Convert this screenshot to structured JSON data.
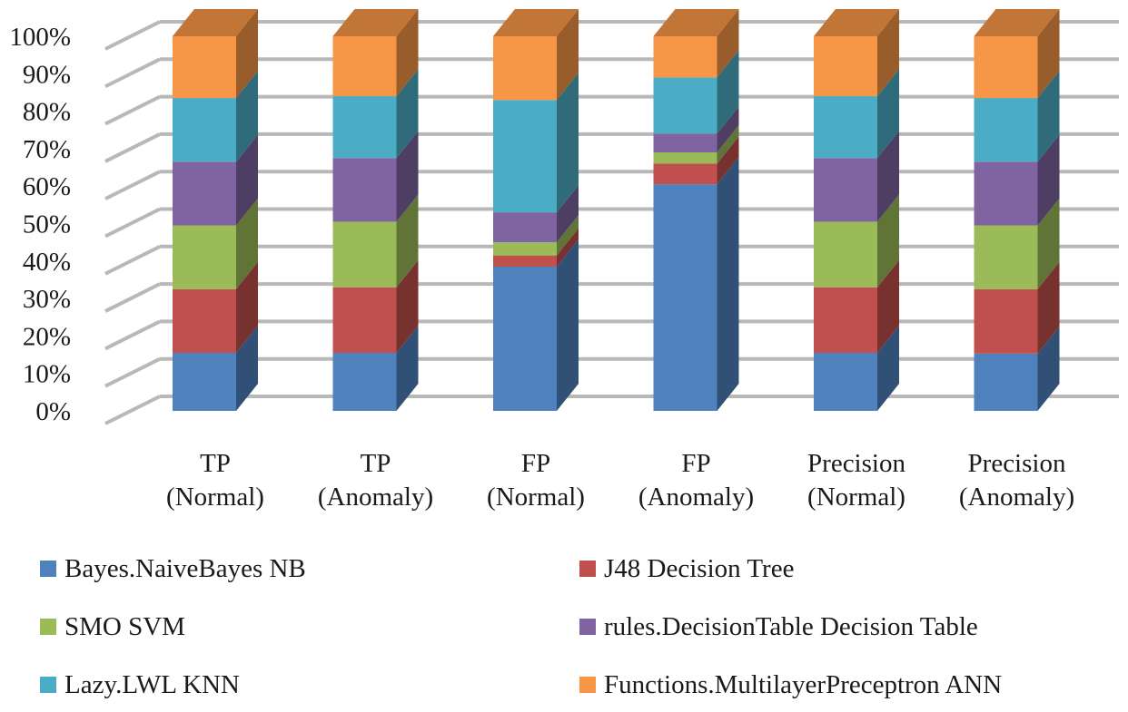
{
  "chart_data": {
    "type": "bar",
    "stacked": "percent",
    "three_d": true,
    "title": "",
    "xlabel": "",
    "ylabel": "",
    "ylim": [
      0,
      100
    ],
    "y_ticks": [
      "0%",
      "10%",
      "20%",
      "30%",
      "40%",
      "50%",
      "60%",
      "70%",
      "80%",
      "90%",
      "100%"
    ],
    "categories": [
      [
        "TP",
        "(Normal)"
      ],
      [
        "TP",
        "(Anomaly)"
      ],
      [
        "FP",
        "(Normal)"
      ],
      [
        "FP",
        "(Anomaly)"
      ],
      [
        "Precision",
        "(Normal)"
      ],
      [
        "Precision",
        "(Anomaly)"
      ]
    ],
    "legend_position": "bottom",
    "series": [
      {
        "name": "Bayes.NaiveBayes NB",
        "color": "#4f81bd",
        "values": [
          15.5,
          15.5,
          38.5,
          60.5,
          15.5,
          15.3
        ]
      },
      {
        "name": "J48 Decision Tree",
        "color": "#c0504d",
        "values": [
          17.0,
          17.5,
          3.0,
          5.5,
          17.5,
          17.2
        ]
      },
      {
        "name": "SMO SVM",
        "color": "#9bbb59",
        "values": [
          17.0,
          17.5,
          3.5,
          3.0,
          17.5,
          17.0
        ]
      },
      {
        "name": "rules.DecisionTable Decision Table",
        "color": "#8064a2",
        "values": [
          17.0,
          17.0,
          8.0,
          5.0,
          17.0,
          17.0
        ]
      },
      {
        "name": "Lazy.LWL KNN",
        "color": "#4bacc6",
        "values": [
          17.0,
          16.5,
          30.0,
          15.0,
          16.5,
          17.0
        ]
      },
      {
        "name": "Functions.MultilayerPreceptron ANN",
        "color": "#f79646",
        "values": [
          16.5,
          16.0,
          17.0,
          11.0,
          16.0,
          16.5
        ]
      }
    ]
  }
}
